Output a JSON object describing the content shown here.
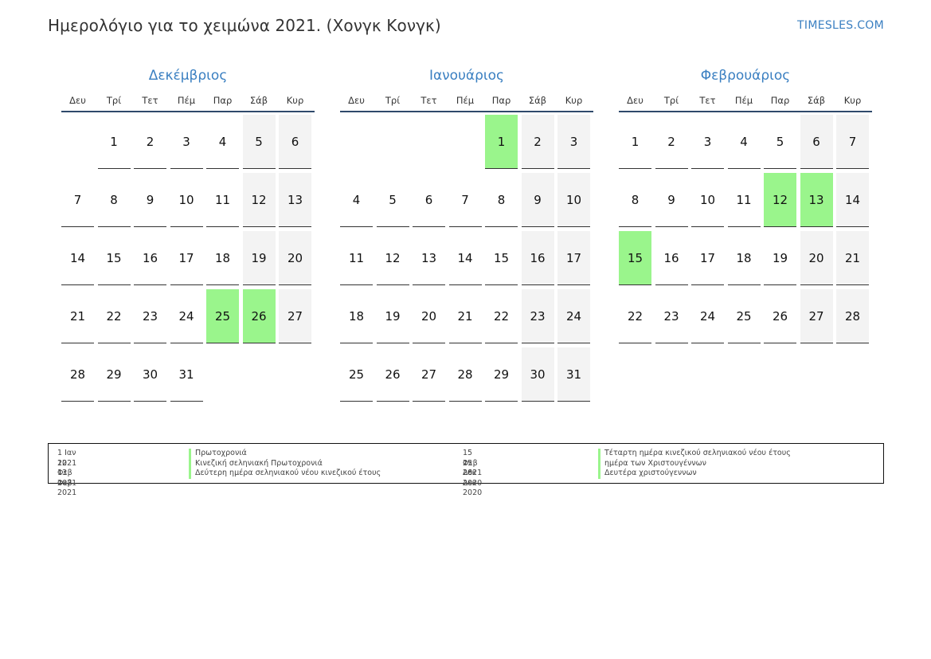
{
  "title": "Ημερολόγιο για το χειμώνα 2021. (Χονγκ Κονγκ)",
  "brand": "TIMESLES.COM",
  "weekdays": [
    "Δευ",
    "Τρί",
    "Τετ",
    "Πέμ",
    "Παρ",
    "Σάβ",
    "Κυρ"
  ],
  "months": [
    {
      "name": "Δεκέμβριος",
      "rows": [
        [
          "",
          "1",
          "2",
          "3",
          "4",
          "5",
          "6"
        ],
        [
          "7",
          "8",
          "9",
          "10",
          "11",
          "12",
          "13"
        ],
        [
          "14",
          "15",
          "16",
          "17",
          "18",
          "19",
          "20"
        ],
        [
          "21",
          "22",
          "23",
          "24",
          "25",
          "26",
          "27"
        ],
        [
          "28",
          "29",
          "30",
          "31",
          "",
          "",
          ""
        ]
      ],
      "holidays": [
        "25",
        "26"
      ]
    },
    {
      "name": "Ιανουάριος",
      "rows": [
        [
          "",
          "",
          "",
          "",
          "1",
          "2",
          "3"
        ],
        [
          "4",
          "5",
          "6",
          "7",
          "8",
          "9",
          "10"
        ],
        [
          "11",
          "12",
          "13",
          "14",
          "15",
          "16",
          "17"
        ],
        [
          "18",
          "19",
          "20",
          "21",
          "22",
          "23",
          "24"
        ],
        [
          "25",
          "26",
          "27",
          "28",
          "29",
          "30",
          "31"
        ]
      ],
      "holidays": [
        "1"
      ]
    },
    {
      "name": "Φεβρουάριος",
      "rows": [
        [
          "1",
          "2",
          "3",
          "4",
          "5",
          "6",
          "7"
        ],
        [
          "8",
          "9",
          "10",
          "11",
          "12",
          "13",
          "14"
        ],
        [
          "15",
          "16",
          "17",
          "18",
          "19",
          "20",
          "21"
        ],
        [
          "22",
          "23",
          "24",
          "25",
          "26",
          "27",
          "28"
        ]
      ],
      "holidays": [
        "12",
        "13",
        "15"
      ]
    }
  ],
  "legend": [
    {
      "date": "1 Ιαν 2021",
      "name": "Πρωτοχρονιά"
    },
    {
      "date": "12 Φεβ 2021",
      "name": "Κινεζική σεληνιακή Πρωτοχρονιά"
    },
    {
      "date": "13 Φεβ 2021",
      "name": "Δεύτερη ημέρα σεληνιακού νέου κινεζικού έτους"
    },
    {
      "date": "15 Φεβ 2021",
      "name": "Τέταρτη ημέρα κινεζικού σεληνιακού νέου έτους"
    },
    {
      "date": "25 Δεκ 2020",
      "name": "ημέρα των Χριστουγέννων"
    },
    {
      "date": "26 Δεκ 2020",
      "name": "Δευτέρα χριστούγεννων"
    }
  ],
  "colors": {
    "accent": "#3a7fc1",
    "holiday": "#9af58c",
    "weekend": "#f3f3f3"
  }
}
